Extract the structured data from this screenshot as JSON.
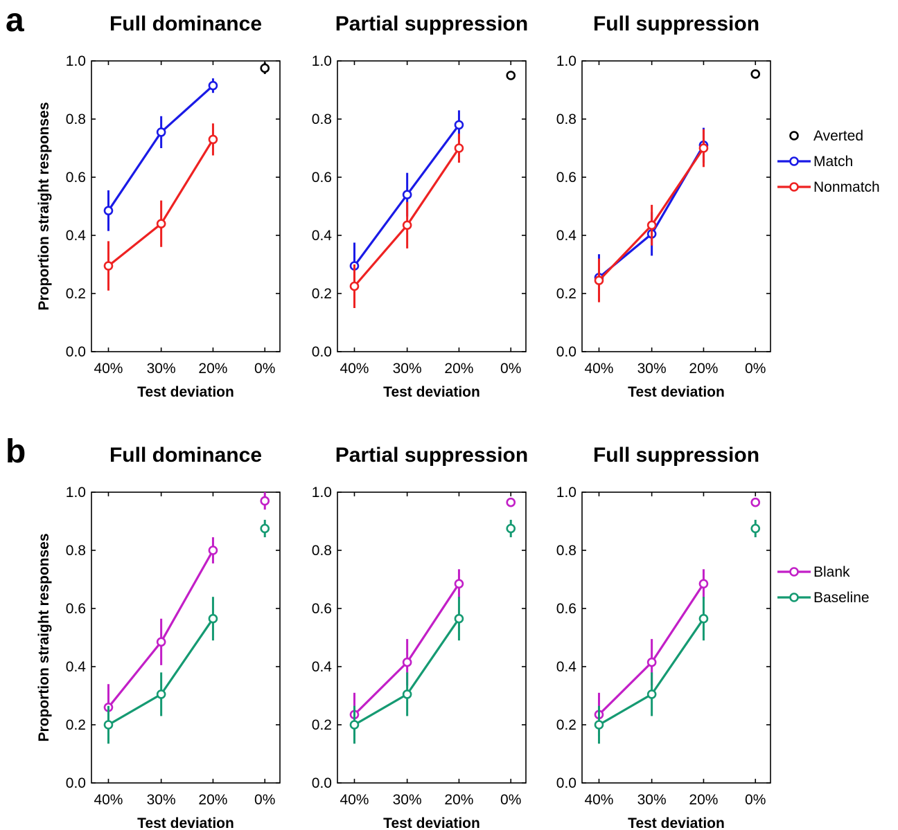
{
  "panels": [
    {
      "letter": "a",
      "legend": [
        "Averted",
        "Match",
        "Nonmatch"
      ]
    },
    {
      "letter": "b",
      "legend": [
        "Blank",
        "Baseline"
      ]
    }
  ],
  "chart_data": [
    {
      "type": "line",
      "panel": "a",
      "title": "Full dominance",
      "xlabel": "Test deviation",
      "ylabel": "Proportion straight responses",
      "categories": [
        "40%",
        "30%",
        "20%",
        "0%"
      ],
      "yticks": [
        "0.0",
        "0.2",
        "0.4",
        "0.6",
        "0.8",
        "1.0"
      ],
      "ylim": [
        0,
        1
      ],
      "series": [
        {
          "name": "Averted",
          "color": "#000000",
          "line": false,
          "points": [
            {
              "x": "0%",
              "y": 0.975,
              "err": 0.02
            }
          ]
        },
        {
          "name": "Match",
          "color": "#1a1ae6",
          "line": true,
          "points": [
            {
              "x": "40%",
              "y": 0.485,
              "err": 0.07
            },
            {
              "x": "30%",
              "y": 0.755,
              "err": 0.055
            },
            {
              "x": "20%",
              "y": 0.915,
              "err": 0.025
            }
          ]
        },
        {
          "name": "Nonmatch",
          "color": "#ee2222",
          "line": true,
          "points": [
            {
              "x": "40%",
              "y": 0.295,
              "err": 0.085
            },
            {
              "x": "30%",
              "y": 0.44,
              "err": 0.08
            },
            {
              "x": "20%",
              "y": 0.73,
              "err": 0.055
            }
          ]
        }
      ]
    },
    {
      "type": "line",
      "panel": "a",
      "title": "Partial suppression",
      "xlabel": "Test deviation",
      "ylabel": "",
      "categories": [
        "40%",
        "30%",
        "20%",
        "0%"
      ],
      "yticks": [
        "0.0",
        "0.2",
        "0.4",
        "0.6",
        "0.8",
        "1.0"
      ],
      "ylim": [
        0,
        1
      ],
      "series": [
        {
          "name": "Averted",
          "color": "#000000",
          "line": false,
          "points": [
            {
              "x": "0%",
              "y": 0.95,
              "err": 0.015
            }
          ]
        },
        {
          "name": "Match",
          "color": "#1a1ae6",
          "line": true,
          "points": [
            {
              "x": "40%",
              "y": 0.295,
              "err": 0.08
            },
            {
              "x": "30%",
              "y": 0.54,
              "err": 0.075
            },
            {
              "x": "20%",
              "y": 0.78,
              "err": 0.05
            }
          ]
        },
        {
          "name": "Nonmatch",
          "color": "#ee2222",
          "line": true,
          "points": [
            {
              "x": "40%",
              "y": 0.225,
              "err": 0.075
            },
            {
              "x": "30%",
              "y": 0.435,
              "err": 0.08
            },
            {
              "x": "20%",
              "y": 0.7,
              "err": 0.05
            }
          ]
        }
      ]
    },
    {
      "type": "line",
      "panel": "a",
      "title": "Full suppression",
      "xlabel": "Test deviation",
      "ylabel": "",
      "categories": [
        "40%",
        "30%",
        "20%",
        "0%"
      ],
      "yticks": [
        "0.0",
        "0.2",
        "0.4",
        "0.6",
        "0.8",
        "1.0"
      ],
      "ylim": [
        0,
        1
      ],
      "series": [
        {
          "name": "Averted",
          "color": "#000000",
          "line": false,
          "points": [
            {
              "x": "0%",
              "y": 0.955,
              "err": 0.015
            }
          ]
        },
        {
          "name": "Match",
          "color": "#1a1ae6",
          "line": true,
          "points": [
            {
              "x": "40%",
              "y": 0.255,
              "err": 0.08
            },
            {
              "x": "30%",
              "y": 0.405,
              "err": 0.075
            },
            {
              "x": "20%",
              "y": 0.71,
              "err": 0.06
            }
          ]
        },
        {
          "name": "Nonmatch",
          "color": "#ee2222",
          "line": true,
          "points": [
            {
              "x": "40%",
              "y": 0.245,
              "err": 0.075
            },
            {
              "x": "30%",
              "y": 0.435,
              "err": 0.07
            },
            {
              "x": "20%",
              "y": 0.7,
              "err": 0.065
            }
          ]
        }
      ]
    },
    {
      "type": "line",
      "panel": "b",
      "title": "Full dominance",
      "xlabel": "Test deviation",
      "ylabel": "Proportion straight responses",
      "categories": [
        "40%",
        "30%",
        "20%",
        "0%"
      ],
      "yticks": [
        "0.0",
        "0.2",
        "0.4",
        "0.6",
        "0.8",
        "1.0"
      ],
      "ylim": [
        0,
        1
      ],
      "series": [
        {
          "name": "Blank",
          "color": "#c21fc7",
          "line": true,
          "points": [
            {
              "x": "40%",
              "y": 0.26,
              "err": 0.08
            },
            {
              "x": "30%",
              "y": 0.485,
              "err": 0.08
            },
            {
              "x": "20%",
              "y": 0.8,
              "err": 0.045
            },
            {
              "x": "0%",
              "y": 0.97,
              "err": 0.03
            }
          ],
          "connected": 3
        },
        {
          "name": "Baseline",
          "color": "#159a72",
          "line": true,
          "points": [
            {
              "x": "40%",
              "y": 0.2,
              "err": 0.065
            },
            {
              "x": "30%",
              "y": 0.305,
              "err": 0.075
            },
            {
              "x": "20%",
              "y": 0.565,
              "err": 0.075
            },
            {
              "x": "0%",
              "y": 0.875,
              "err": 0.03
            }
          ],
          "connected": 3
        }
      ]
    },
    {
      "type": "line",
      "panel": "b",
      "title": "Partial suppression",
      "xlabel": "Test deviation",
      "ylabel": "",
      "categories": [
        "40%",
        "30%",
        "20%",
        "0%"
      ],
      "yticks": [
        "0.0",
        "0.2",
        "0.4",
        "0.6",
        "0.8",
        "1.0"
      ],
      "ylim": [
        0,
        1
      ],
      "series": [
        {
          "name": "Blank",
          "color": "#c21fc7",
          "line": true,
          "points": [
            {
              "x": "40%",
              "y": 0.235,
              "err": 0.075
            },
            {
              "x": "30%",
              "y": 0.415,
              "err": 0.08
            },
            {
              "x": "20%",
              "y": 0.685,
              "err": 0.05
            },
            {
              "x": "0%",
              "y": 0.965,
              "err": 0.015
            }
          ],
          "connected": 3
        },
        {
          "name": "Baseline",
          "color": "#159a72",
          "line": true,
          "points": [
            {
              "x": "40%",
              "y": 0.2,
              "err": 0.065
            },
            {
              "x": "30%",
              "y": 0.305,
              "err": 0.075
            },
            {
              "x": "20%",
              "y": 0.565,
              "err": 0.075
            },
            {
              "x": "0%",
              "y": 0.875,
              "err": 0.03
            }
          ],
          "connected": 3
        }
      ]
    },
    {
      "type": "line",
      "panel": "b",
      "title": "Full suppression",
      "xlabel": "Test deviation",
      "ylabel": "",
      "categories": [
        "40%",
        "30%",
        "20%",
        "0%"
      ],
      "yticks": [
        "0.0",
        "0.2",
        "0.4",
        "0.6",
        "0.8",
        "1.0"
      ],
      "ylim": [
        0,
        1
      ],
      "series": [
        {
          "name": "Blank",
          "color": "#c21fc7",
          "line": true,
          "points": [
            {
              "x": "40%",
              "y": 0.235,
              "err": 0.075
            },
            {
              "x": "30%",
              "y": 0.415,
              "err": 0.08
            },
            {
              "x": "20%",
              "y": 0.685,
              "err": 0.05
            },
            {
              "x": "0%",
              "y": 0.965,
              "err": 0.015
            }
          ],
          "connected": 3
        },
        {
          "name": "Baseline",
          "color": "#159a72",
          "line": true,
          "points": [
            {
              "x": "40%",
              "y": 0.2,
              "err": 0.065
            },
            {
              "x": "30%",
              "y": 0.305,
              "err": 0.075
            },
            {
              "x": "20%",
              "y": 0.565,
              "err": 0.075
            },
            {
              "x": "0%",
              "y": 0.875,
              "err": 0.03
            }
          ],
          "connected": 3
        }
      ]
    }
  ]
}
